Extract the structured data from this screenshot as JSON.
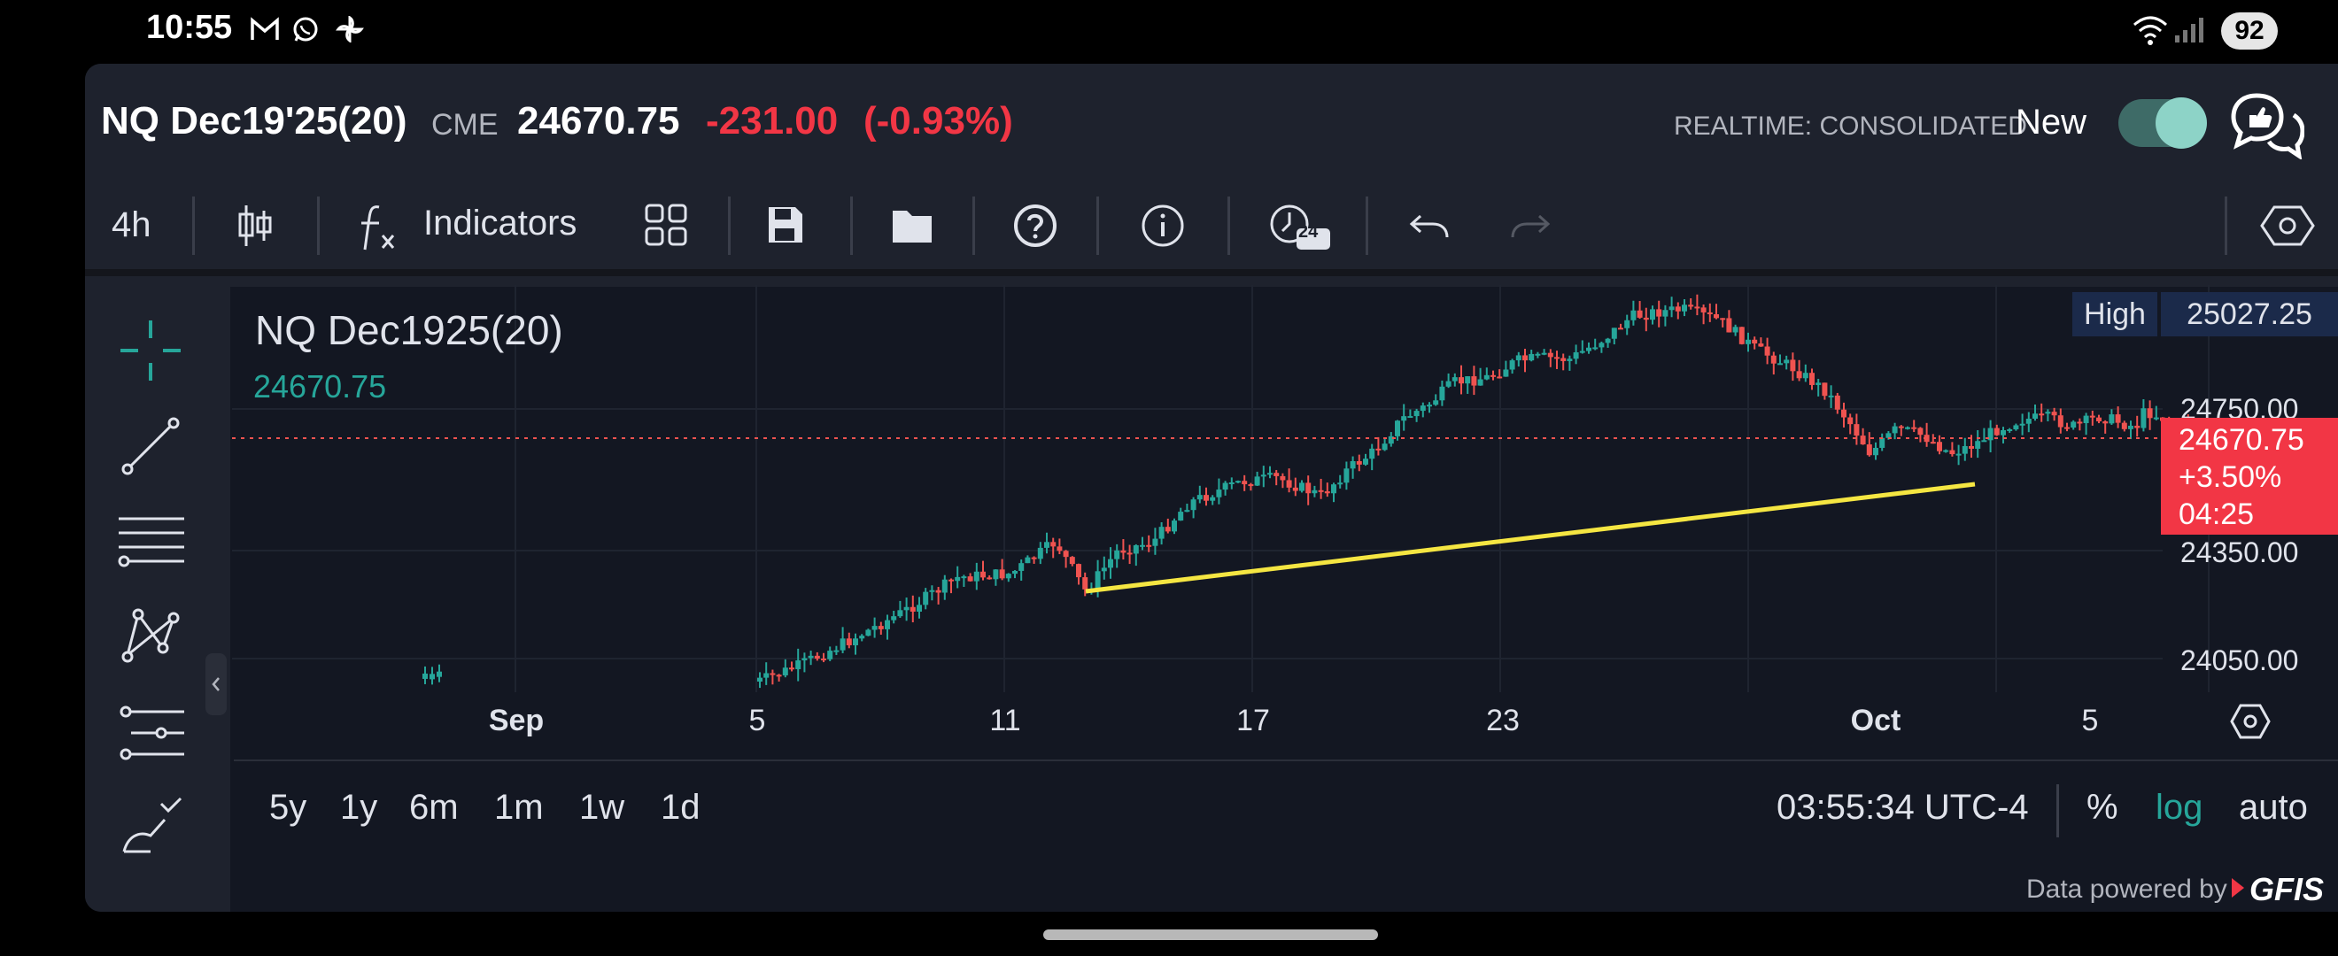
{
  "status_bar": {
    "time": "10:55",
    "battery": "92",
    "notification_icons": [
      "gmail-icon",
      "whatsapp-icon",
      "pinwheel-icon"
    ]
  },
  "header": {
    "symbol": "NQ Dec19'25(20)",
    "exchange": "CME",
    "last_price": "24670.75",
    "change": "-231.00",
    "change_pct": "(-0.93%)",
    "realtime": "REALTIME: CONSOLIDATED",
    "new_label": "New",
    "toggle_on": true
  },
  "toolbar": {
    "interval": "4h",
    "indicators_label": "Indicators",
    "clock_badge": "24"
  },
  "chart": {
    "legend_symbol": "NQ Dec1925(20)",
    "legend_price": "24670.75",
    "high_label": "High",
    "high_value": "25027.25",
    "price_scale": [
      "24750.00",
      "24350.00",
      "24050.00"
    ],
    "last_tag": {
      "price": "24670.75",
      "pct": "+3.50%",
      "countdown": "04:25"
    },
    "date_labels": [
      "Sep",
      "5",
      "11",
      "17",
      "23",
      "Oct",
      "5"
    ],
    "colors": {
      "up": "#26a69a",
      "down": "#ef5350",
      "trendline": "#f5e642",
      "last_line": "#ef5350"
    }
  },
  "bottom": {
    "ranges": [
      "5y",
      "1y",
      "6m",
      "1m",
      "1w",
      "1d"
    ],
    "clock": "03:55:34 UTC-4",
    "pct": "%",
    "log": "log",
    "auto": "auto",
    "powered_by": "Data powered by",
    "brand": "GFIS"
  }
}
